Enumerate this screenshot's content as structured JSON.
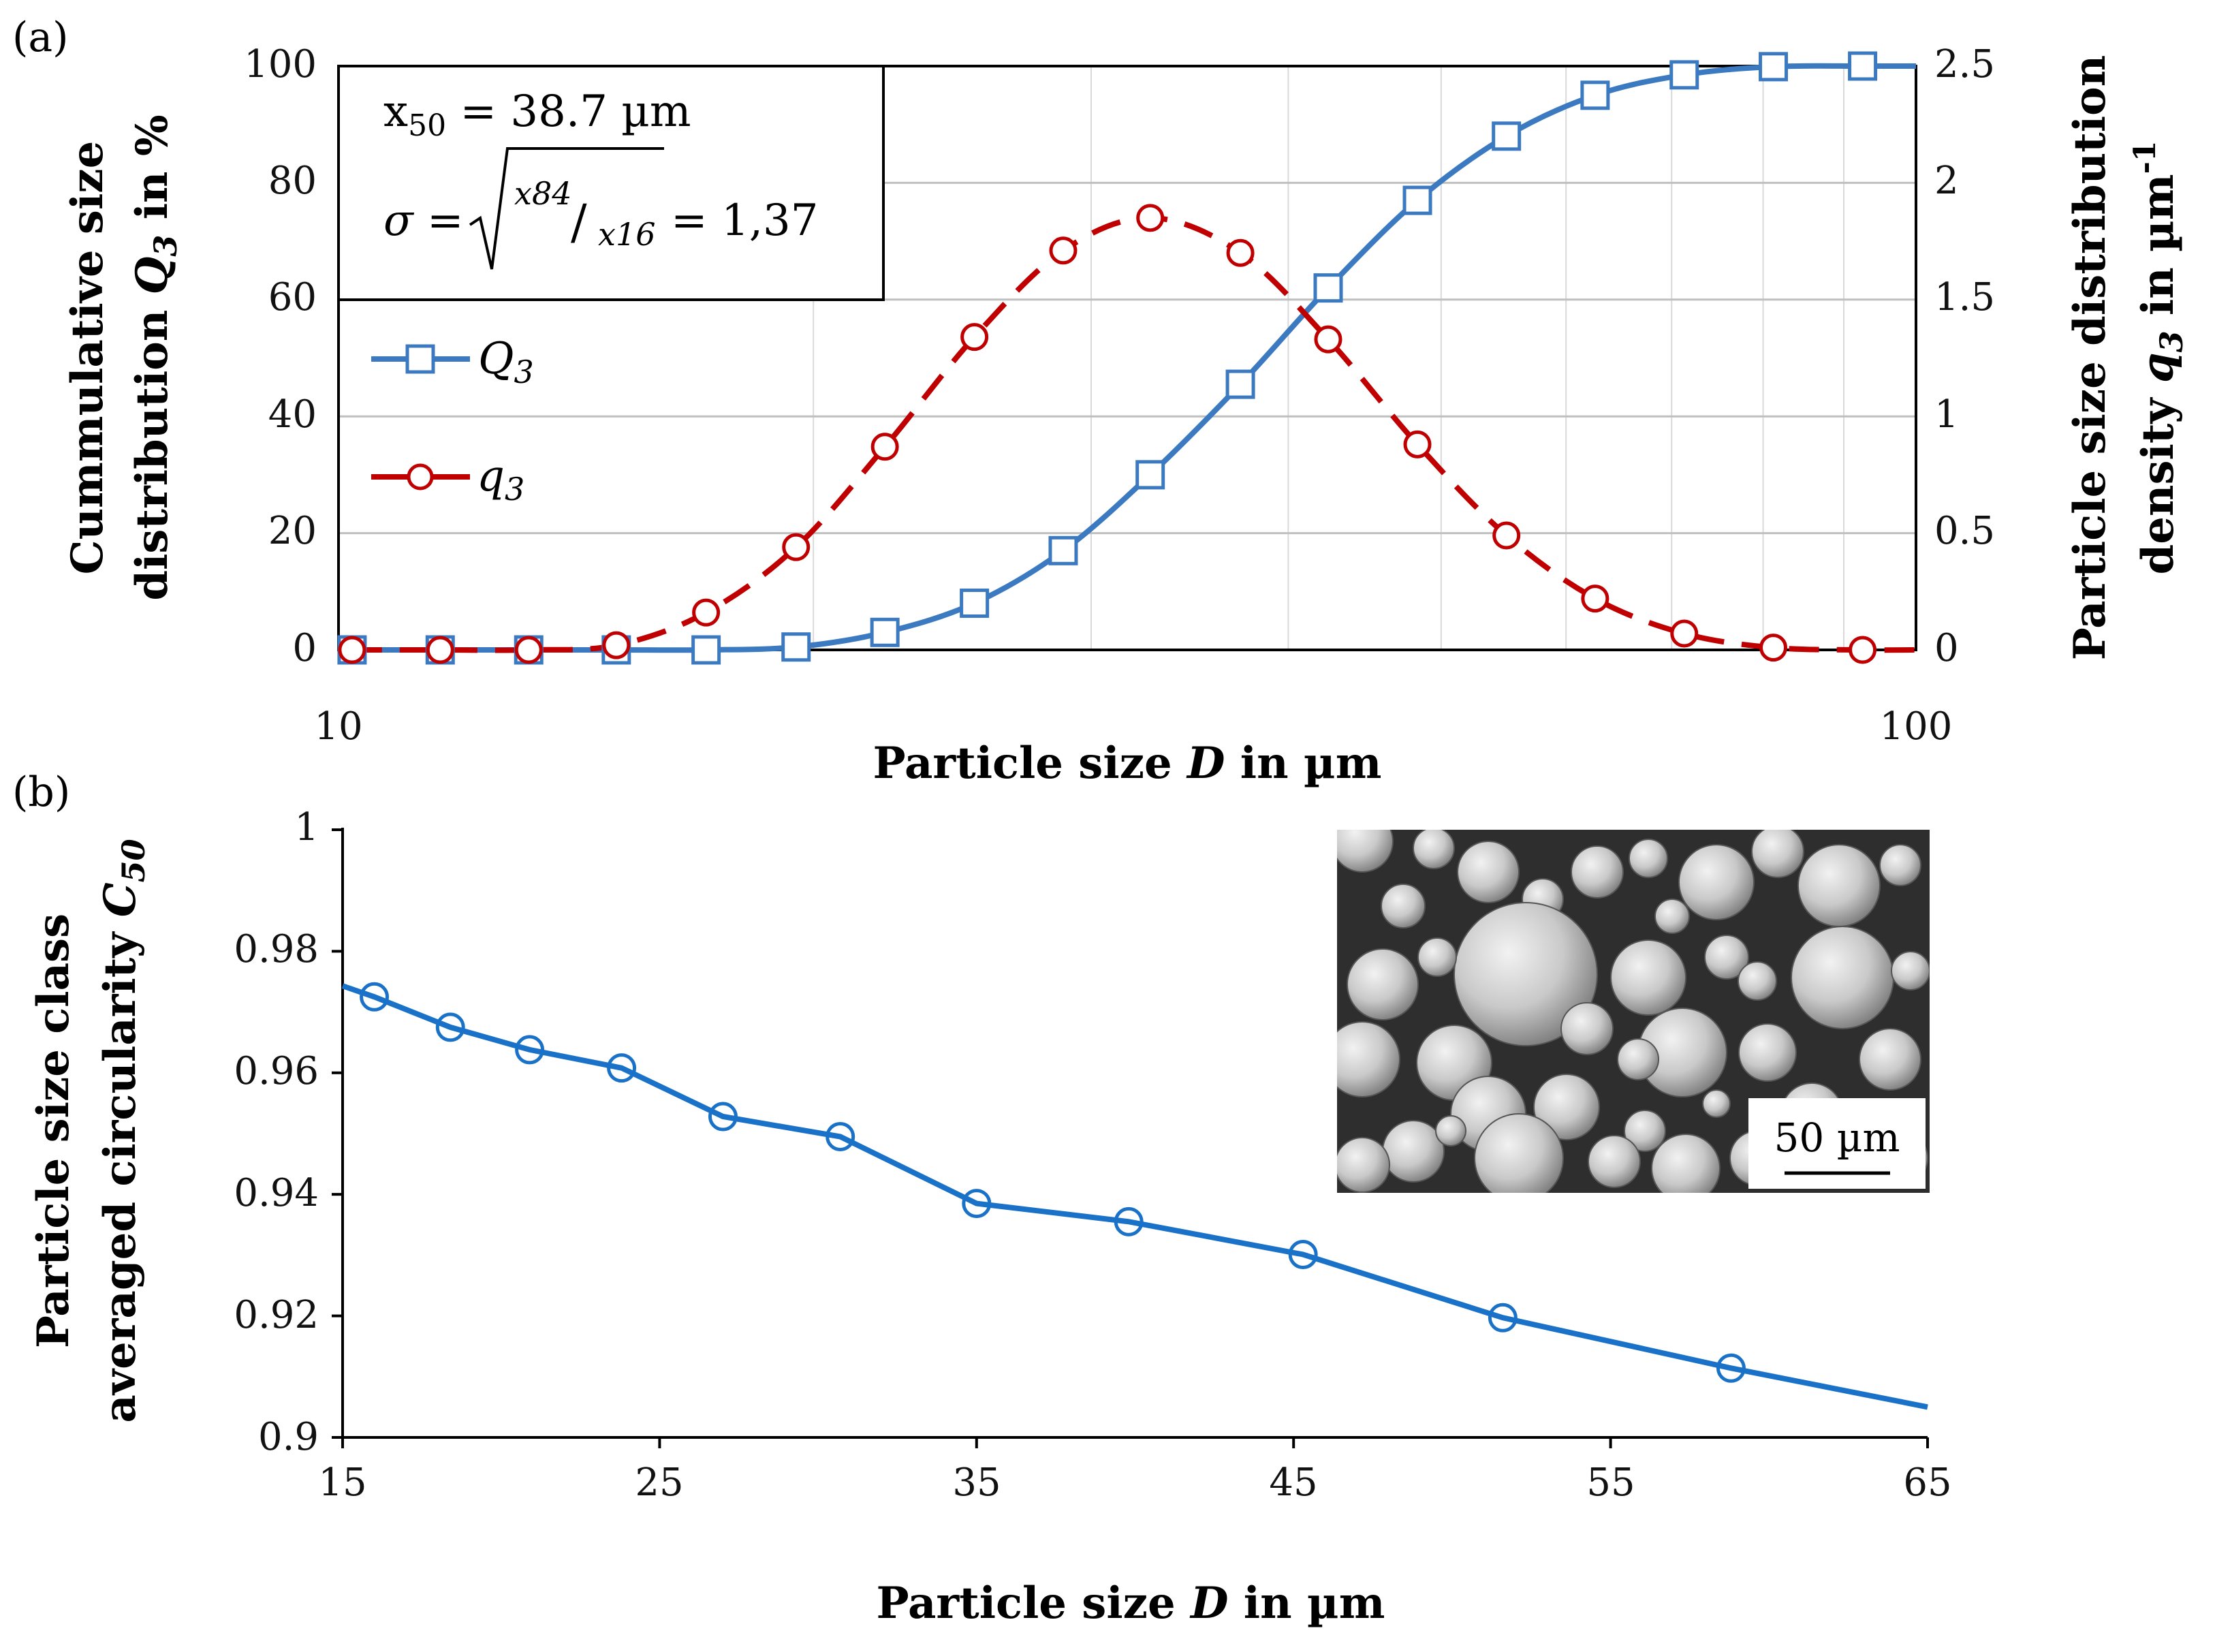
{
  "colors": {
    "blue": "#3b7ac0",
    "red": "#c00000",
    "bluePanelB": "#1a72c8"
  },
  "chart_data": [
    {
      "panel": "(a)",
      "type": "line",
      "xscale": "log",
      "xlim": [
        10,
        100
      ],
      "x_tick_labels": [
        "10",
        "100"
      ],
      "xlabel": "Particle size D in µm",
      "ylabel_left": [
        "Cummulative size",
        "distribution Q3 in %"
      ],
      "ylabel_right": [
        "Particle size distribution",
        "density q3  in  µm-1"
      ],
      "ylim_left": [
        0,
        100
      ],
      "ylim_right": [
        0,
        2.5
      ],
      "y_left_ticks": [
        "0",
        "20",
        "40",
        "60",
        "80",
        "100"
      ],
      "y_right_ticks": [
        "0",
        "0.5",
        "1",
        "1.5",
        "2",
        "2.5"
      ],
      "annotation_x50": "x50 = 38.7 µm",
      "annotation_sigma": "σ = √(x84/x16) = 1,37",
      "annotation_sigma_prefix": "σ =",
      "annotation_sigma_numerator": "x84",
      "annotation_sigma_denominator": "x16",
      "annotation_sigma_suffix": "= 1,37",
      "legend": [
        "Q3",
        "q3"
      ],
      "series": [
        {
          "name": "Q3",
          "axis": "left",
          "marker": "square",
          "x": [
            10.2,
            11.6,
            13.2,
            15.0,
            17.1,
            19.5,
            22.2,
            25.3,
            28.8,
            32.7,
            37.3,
            42.4,
            48.3,
            55.0,
            62.6,
            71.3,
            81.2,
            92.5
          ],
          "values": [
            0,
            0,
            0,
            0,
            0,
            0.5,
            3,
            8,
            17,
            30,
            45.5,
            62,
            77,
            88,
            95,
            98.5,
            99.9,
            100
          ]
        },
        {
          "name": "q3",
          "axis": "right",
          "marker": "circle",
          "x": [
            10.2,
            11.6,
            13.2,
            15.0,
            17.1,
            19.5,
            22.2,
            25.3,
            28.8,
            32.7,
            37.3,
            42.4,
            48.3,
            55.0,
            62.6,
            71.3,
            81.2,
            92.5
          ],
          "values": [
            0,
            0,
            0,
            0.02,
            0.16,
            0.44,
            0.87,
            1.34,
            1.71,
            1.85,
            1.7,
            1.33,
            0.88,
            0.49,
            0.22,
            0.07,
            0.01,
            0
          ]
        }
      ]
    },
    {
      "panel": "(b)",
      "type": "line",
      "xlim": [
        15,
        65
      ],
      "x_ticks": [
        "15",
        "25",
        "35",
        "45",
        "55",
        "65"
      ],
      "xlabel": "Particle size D in µm",
      "ylabel": [
        "Particle size class",
        "averaged circularity C50"
      ],
      "ylim": [
        0.9,
        1
      ],
      "y_ticks": [
        "0.9",
        "0.92",
        "0.94",
        "0.96",
        "0.98",
        "1"
      ],
      "inset_scale_bar": "50 µm",
      "series": [
        {
          "name": "C50",
          "marker": "circle",
          "x": [
            16.0,
            18.4,
            20.9,
            23.8,
            27.0,
            30.7,
            35.0,
            39.8,
            45.3,
            51.6,
            58.8
          ],
          "values": [
            0.9725,
            0.9675,
            0.9638,
            0.9608,
            0.9528,
            0.9495,
            0.9385,
            0.9355,
            0.9301,
            0.9197,
            0.9114
          ],
          "line_start": [
            15,
            0.9743
          ],
          "line_end": [
            65,
            0.905
          ]
        }
      ]
    }
  ]
}
